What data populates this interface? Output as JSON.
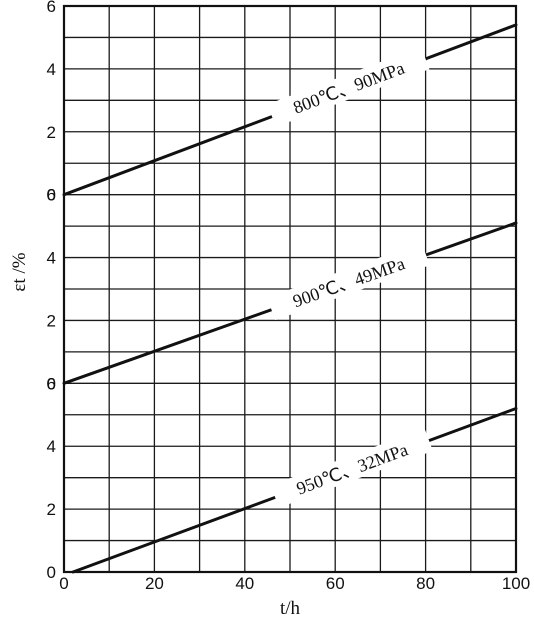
{
  "chart_data": [
    {
      "type": "line",
      "xlim": [
        0,
        100
      ],
      "ylim": [
        0,
        6
      ],
      "y_ticks": [
        "0",
        "2",
        "4",
        "6"
      ],
      "series": [
        {
          "name": "800℃、90MPa",
          "x": [
            0,
            100
          ],
          "values": [
            0.0,
            5.4
          ]
        }
      ]
    },
    {
      "type": "line",
      "xlim": [
        0,
        100
      ],
      "ylim": [
        0,
        6
      ],
      "y_ticks": [
        "0",
        "2",
        "4",
        "6"
      ],
      "series": [
        {
          "name": "900℃、49MPa",
          "x": [
            0,
            100
          ],
          "values": [
            0.0,
            5.1
          ]
        }
      ]
    },
    {
      "type": "line",
      "xlim": [
        0,
        100
      ],
      "ylim": [
        0,
        6
      ],
      "y_ticks": [
        "0",
        "2",
        "4",
        "6"
      ],
      "x_ticks": [
        "0",
        "20",
        "40",
        "60",
        "80",
        "100"
      ],
      "xlabel": "t/h",
      "series": [
        {
          "name": "950℃、32MPa",
          "x": [
            2,
            100
          ],
          "values": [
            0.0,
            5.2
          ]
        }
      ]
    }
  ],
  "shared": {
    "ylabel": "εt /%",
    "grid": true
  }
}
